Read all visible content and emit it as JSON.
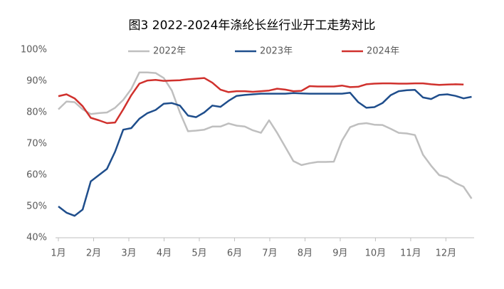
{
  "chart_data": {
    "type": "line",
    "title": "图3 2022-2024年涤纶长丝行业开工走势对比",
    "x": [
      1.0,
      1.23,
      1.46,
      1.69,
      1.92,
      2.15,
      2.38,
      2.61,
      2.84,
      3.07,
      3.3,
      3.53,
      3.76,
      3.99,
      4.22,
      4.45,
      4.68,
      4.91,
      5.14,
      5.37,
      5.6,
      5.83,
      6.06,
      6.29,
      6.52,
      6.75,
      6.98,
      7.21,
      7.44,
      7.67,
      7.9,
      8.13,
      8.36,
      8.59,
      8.82,
      9.05,
      9.28,
      9.51,
      9.74,
      9.97,
      10.2,
      10.43,
      10.66,
      10.89,
      11.12,
      11.35,
      11.58,
      11.81,
      12.04,
      12.27,
      12.5,
      12.73
    ],
    "series": [
      {
        "name": "2022年",
        "color": "#bfbfbf",
        "values": [
          81,
          83.5,
          83.3,
          81,
          79.5,
          79.8,
          80,
          81.5,
          84,
          87.5,
          92.8,
          92.8,
          92.6,
          91,
          87,
          80,
          74,
          74.2,
          74.5,
          75.5,
          75.5,
          76.5,
          75.8,
          75.5,
          74.3,
          73.5,
          77.5,
          73.5,
          69,
          64.5,
          63.2,
          63.8,
          64.2,
          64.2,
          64.3,
          71,
          75.3,
          76.3,
          76.6,
          76.1,
          76,
          74.8,
          73.5,
          73.3,
          72.8,
          66.5,
          63,
          60,
          59.2,
          57.5,
          56.3,
          52.5
        ]
      },
      {
        "name": "2023年",
        "color": "#1f4e8c",
        "values": [
          50,
          48,
          47,
          49,
          58,
          60,
          62,
          67.5,
          74.5,
          75,
          78,
          79.8,
          80.8,
          82.8,
          83,
          82.2,
          79,
          78.5,
          80,
          82.2,
          81.8,
          83.7,
          85.3,
          85.6,
          85.8,
          86,
          86,
          86,
          86,
          86.2,
          86.1,
          86,
          86,
          86,
          86,
          86,
          86.3,
          83.3,
          81.5,
          81.7,
          83,
          85.5,
          86.8,
          87.1,
          87.2,
          84.8,
          84.3,
          85.6,
          85.8,
          85.3,
          84.5,
          85
        ]
      },
      {
        "name": "2024年",
        "color": "#d0312d",
        "values": [
          85.2,
          85.8,
          84.5,
          82,
          78.3,
          77.5,
          76.6,
          76.8,
          81,
          85.5,
          89.2,
          90.2,
          90.4,
          90.1,
          90.2,
          90.3,
          90.6,
          90.8,
          91,
          89.5,
          87.3,
          86.5,
          86.8,
          86.8,
          86.6,
          86.8,
          87,
          87.6,
          87.3,
          86.8,
          86.9,
          88.4,
          88.3,
          88.3,
          88.3,
          88.6,
          88.1,
          88.2,
          89,
          89.2,
          89.3,
          89.3,
          89.2,
          89.2,
          89.3,
          89.3,
          89,
          88.8,
          88.9,
          89,
          88.9,
          null
        ]
      }
    ],
    "xlim": [
      1,
      12.8
    ],
    "xticks": [
      {
        "value": 1,
        "label": "1月"
      },
      {
        "value": 2,
        "label": "2月"
      },
      {
        "value": 3,
        "label": "3月"
      },
      {
        "value": 4,
        "label": "4月"
      },
      {
        "value": 5,
        "label": "5月"
      },
      {
        "value": 6,
        "label": "6月"
      },
      {
        "value": 7,
        "label": "7月"
      },
      {
        "value": 8,
        "label": "8月"
      },
      {
        "value": 9,
        "label": "9月"
      },
      {
        "value": 10,
        "label": "10月"
      },
      {
        "value": 11,
        "label": "11月"
      },
      {
        "value": 12,
        "label": "12月"
      }
    ],
    "ylim": [
      40,
      100
    ],
    "yticks": [
      {
        "value": 40,
        "label": "40%"
      },
      {
        "value": 50,
        "label": "50%"
      },
      {
        "value": 60,
        "label": "60%"
      },
      {
        "value": 70,
        "label": "70%"
      },
      {
        "value": 80,
        "label": "80%"
      },
      {
        "value": 90,
        "label": "90%"
      },
      {
        "value": 100,
        "label": "100%"
      }
    ],
    "legend": "top"
  }
}
